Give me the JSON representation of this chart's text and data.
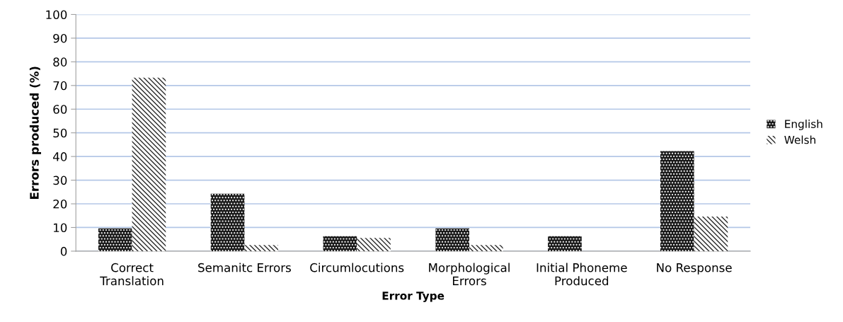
{
  "chart_data": {
    "type": "bar",
    "xlabel": "Error Type",
    "ylabel": "Errors produced (%)",
    "categories": [
      "Correct\nTranslation",
      "Semanitc Errors",
      "Circumlocutions",
      "Morphological\nErrors",
      "Initial Phoneme\nProduced",
      "No Response"
    ],
    "series": [
      {
        "name": "English",
        "color": "#1a1a1a",
        "values": [
          9.6,
          24.3,
          6.3,
          9.6,
          6.3,
          42.3
        ]
      },
      {
        "name": "Welsh",
        "color": "#2a2a2a",
        "values": [
          73.3,
          2.6,
          5.6,
          2.6,
          0,
          14.6
        ]
      }
    ],
    "ylim": [
      0,
      100
    ],
    "yticks": [
      0,
      10,
      20,
      30,
      40,
      50,
      60,
      70,
      80,
      90,
      100
    ],
    "grid": "y",
    "legend": "right"
  }
}
